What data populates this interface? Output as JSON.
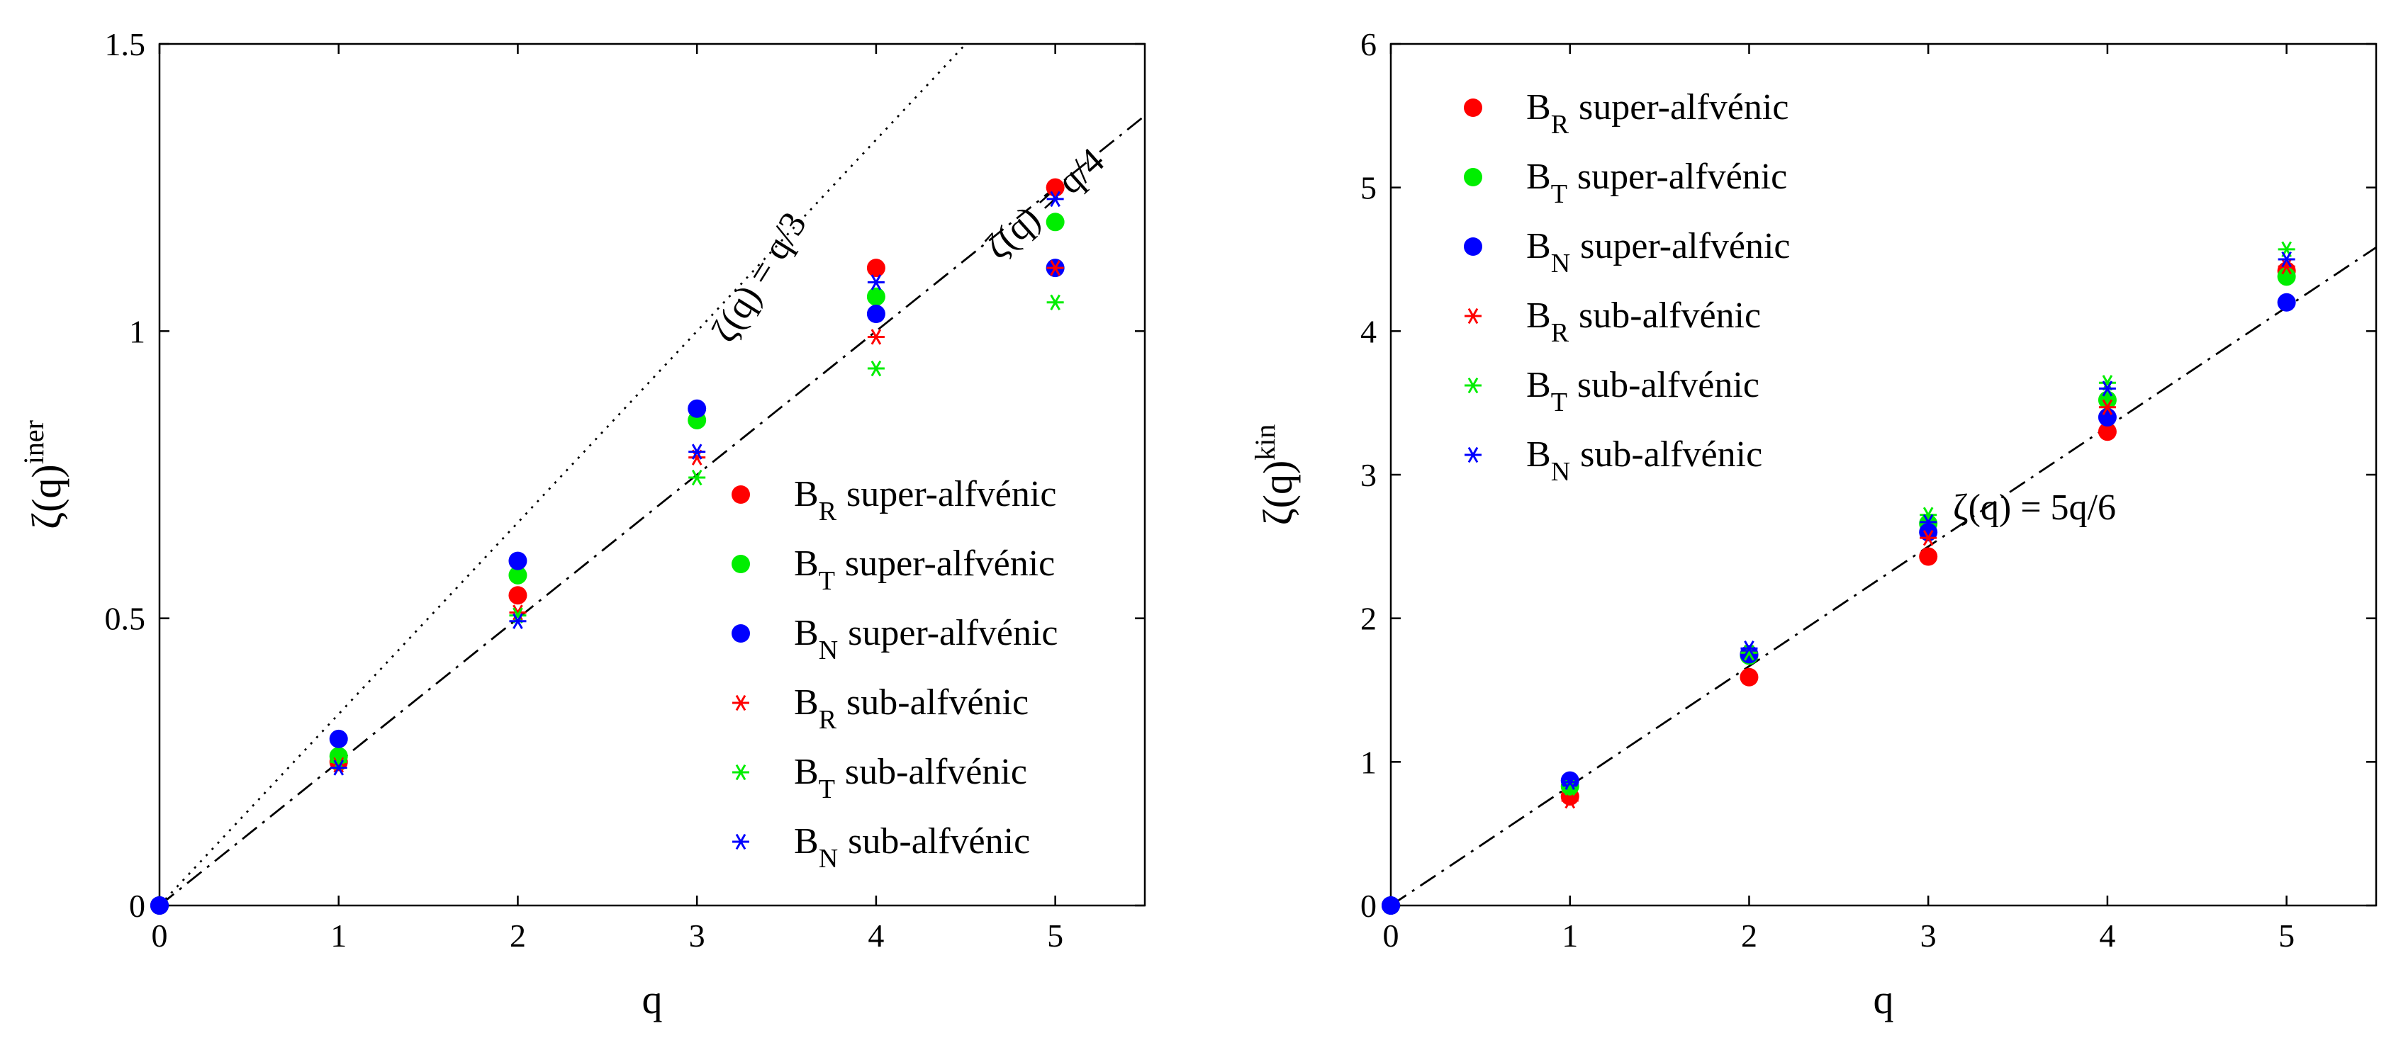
{
  "chart_data": [
    {
      "type": "scatter",
      "xlabel": "q",
      "ylabel": "ζ(q)",
      "ylabel_sup": "iner",
      "xlim": [
        0,
        5.5
      ],
      "ylim": [
        0,
        1.5
      ],
      "xticks": [
        "0",
        "1",
        "2",
        "3",
        "4",
        "5"
      ],
      "yticks": [
        "0",
        "0.5",
        "1",
        "1.5"
      ],
      "x": [
        0,
        1,
        2,
        3,
        4,
        5
      ],
      "series": [
        {
          "name": "B",
          "sub": "R",
          "label": "super-alfvénic",
          "marker": "circle",
          "color": "#ff0000",
          "values": [
            0,
            0.25,
            0.54,
            null,
            1.11,
            1.25
          ]
        },
        {
          "name": "B",
          "sub": "T",
          "label": "super-alfvénic",
          "marker": "circle",
          "color": "#00ee00",
          "values": [
            0,
            0.26,
            0.575,
            0.845,
            1.06,
            1.19
          ]
        },
        {
          "name": "B",
          "sub": "N",
          "label": "super-alfvénic",
          "marker": "circle",
          "color": "#0000ff",
          "values": [
            0,
            0.29,
            0.6,
            0.865,
            1.03,
            1.11
          ]
        },
        {
          "name": "B",
          "sub": "R",
          "label": "sub-alfvénic",
          "marker": "star",
          "color": "#ff0000",
          "values": [
            0,
            0.245,
            0.51,
            0.78,
            0.99,
            1.11
          ]
        },
        {
          "name": "B",
          "sub": "T",
          "label": "sub-alfvénic",
          "marker": "star",
          "color": "#00ee00",
          "values": [
            0,
            0.25,
            0.505,
            0.745,
            0.935,
            1.05
          ]
        },
        {
          "name": "B",
          "sub": "N",
          "label": "sub-alfvénic",
          "marker": "star",
          "color": "#0000ff",
          "values": [
            0,
            0.24,
            0.495,
            0.79,
            1.085,
            1.23
          ]
        }
      ],
      "reference_lines": [
        {
          "label": "ζ(q) = q/3",
          "slope": 0.3333,
          "style": "dotted"
        },
        {
          "label": "ζ(q) = q/4",
          "slope": 0.25,
          "style": "dashdot"
        }
      ],
      "legend_position": "lower-right"
    },
    {
      "type": "scatter",
      "xlabel": "q",
      "ylabel": "ζ(q)",
      "ylabel_sup": "kin",
      "xlim": [
        0,
        5.5
      ],
      "ylim": [
        0,
        6
      ],
      "xticks": [
        "0",
        "1",
        "2",
        "3",
        "4",
        "5"
      ],
      "yticks": [
        "0",
        "1",
        "2",
        "3",
        "4",
        "5",
        "6"
      ],
      "x": [
        0,
        1,
        2,
        3,
        4,
        5
      ],
      "series": [
        {
          "name": "B",
          "sub": "R",
          "label": "super-alfvénic",
          "marker": "circle",
          "color": "#ff0000",
          "values": [
            0,
            0.76,
            1.59,
            2.43,
            3.3,
            4.42
          ]
        },
        {
          "name": "B",
          "sub": "T",
          "label": "super-alfvénic",
          "marker": "circle",
          "color": "#00ee00",
          "values": [
            0,
            0.83,
            1.74,
            2.66,
            3.52,
            4.38
          ]
        },
        {
          "name": "B",
          "sub": "N",
          "label": "super-alfvénic",
          "marker": "circle",
          "color": "#0000ff",
          "values": [
            0,
            0.87,
            1.75,
            2.6,
            3.4,
            4.2
          ]
        },
        {
          "name": "B",
          "sub": "R",
          "label": "sub-alfvénic",
          "marker": "star",
          "color": "#ff0000",
          "values": [
            0,
            0.73,
            1.76,
            2.56,
            3.47,
            4.45
          ]
        },
        {
          "name": "B",
          "sub": "T",
          "label": "sub-alfvénic",
          "marker": "star",
          "color": "#00ee00",
          "values": [
            0,
            0.82,
            1.76,
            2.72,
            3.64,
            4.57
          ]
        },
        {
          "name": "B",
          "sub": "N",
          "label": "sub-alfvénic",
          "marker": "star",
          "color": "#0000ff",
          "values": [
            0,
            0.86,
            1.79,
            2.67,
            3.6,
            4.5
          ]
        }
      ],
      "reference_lines": [
        {
          "label": "ζ(q) = 5q/6",
          "slope": 0.8333,
          "style": "dashdot"
        }
      ],
      "legend_position": "top-left"
    }
  ]
}
